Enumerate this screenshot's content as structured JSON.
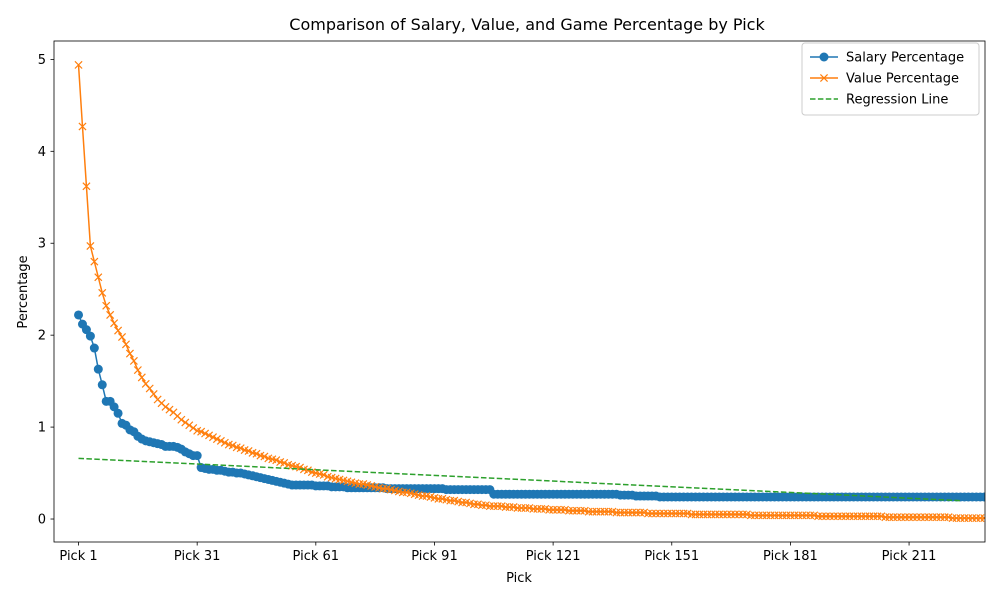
{
  "chart_data": {
    "type": "line",
    "title": "Comparison of Salary, Value, and Game Percentage by Pick",
    "xlabel": "Pick",
    "ylabel": "Percentage",
    "x_count": 224,
    "xticks": [
      {
        "index": 1,
        "label": "Pick 1"
      },
      {
        "index": 31,
        "label": "Pick 31"
      },
      {
        "index": 61,
        "label": "Pick 61"
      },
      {
        "index": 91,
        "label": "Pick 91"
      },
      {
        "index": 121,
        "label": "Pick 121"
      },
      {
        "index": 151,
        "label": "Pick 151"
      },
      {
        "index": 181,
        "label": "Pick 181"
      },
      {
        "index": 211,
        "label": "Pick 211"
      }
    ],
    "xlim": [
      -5.2,
      230.2
    ],
    "ylim": [
      -0.25,
      5.2
    ],
    "yticks": [
      0,
      1,
      2,
      3,
      4,
      5
    ],
    "grid": false,
    "legend_position": "top-right",
    "series": [
      {
        "name": "Salary Percentage",
        "color": "#1f77b4",
        "marker": "circle",
        "values": [
          2.22,
          2.12,
          2.06,
          1.99,
          1.86,
          1.63,
          1.46,
          1.28,
          1.28,
          1.22,
          1.15,
          1.04,
          1.02,
          0.97,
          0.95,
          0.9,
          0.87,
          0.85,
          0.84,
          0.83,
          0.82,
          0.81,
          0.79,
          0.79,
          0.79,
          0.78,
          0.76,
          0.73,
          0.71,
          0.69,
          0.69,
          0.56,
          0.55,
          0.54,
          0.54,
          0.53,
          0.53,
          0.52,
          0.51,
          0.51,
          0.5,
          0.5,
          0.49,
          0.48,
          0.47,
          0.46,
          0.45,
          0.44,
          0.43,
          0.42,
          0.41,
          0.4,
          0.39,
          0.38,
          0.37,
          0.37,
          0.37,
          0.37,
          0.37,
          0.37,
          0.36,
          0.36,
          0.36,
          0.36,
          0.35,
          0.35,
          0.35,
          0.35,
          0.34,
          0.34,
          0.34,
          0.34,
          0.34,
          0.34,
          0.34,
          0.34,
          0.34,
          0.34,
          0.33,
          0.33,
          0.33,
          0.33,
          0.33,
          0.33,
          0.33,
          0.33,
          0.33,
          0.33,
          0.33,
          0.33,
          0.33,
          0.33,
          0.33,
          0.32,
          0.32,
          0.32,
          0.32,
          0.32,
          0.32,
          0.32,
          0.32,
          0.32,
          0.32,
          0.32,
          0.32,
          0.27,
          0.27,
          0.27,
          0.27,
          0.27,
          0.27,
          0.27,
          0.27,
          0.27,
          0.27,
          0.27,
          0.27,
          0.27,
          0.27,
          0.27,
          0.27,
          0.27,
          0.27,
          0.27,
          0.27,
          0.27,
          0.27,
          0.27,
          0.27,
          0.27,
          0.27,
          0.27,
          0.27,
          0.27,
          0.27,
          0.27,
          0.27,
          0.26,
          0.26,
          0.26,
          0.26,
          0.25,
          0.25,
          0.25,
          0.25,
          0.25,
          0.25,
          0.24,
          0.24,
          0.24,
          0.24,
          0.24,
          0.24,
          0.24,
          0.24,
          0.24,
          0.24,
          0.24,
          0.24,
          0.24,
          0.24,
          0.24,
          0.24,
          0.24,
          0.24,
          0.24,
          0.24,
          0.24,
          0.24,
          0.24,
          0.24,
          0.24,
          0.24,
          0.24,
          0.24,
          0.24,
          0.24,
          0.24,
          0.24,
          0.24,
          0.24,
          0.24,
          0.24,
          0.24,
          0.24,
          0.24,
          0.24,
          0.24,
          0.24,
          0.24,
          0.24,
          0.24,
          0.24,
          0.24,
          0.24,
          0.24,
          0.24,
          0.24,
          0.24,
          0.24,
          0.24,
          0.24,
          0.24,
          0.24,
          0.24,
          0.24,
          0.24,
          0.24,
          0.24,
          0.24,
          0.24,
          0.24,
          0.24,
          0.24,
          0.24,
          0.24,
          0.24,
          0.24,
          0.24,
          0.24,
          0.24,
          0.24,
          0.24,
          0.24,
          0.24,
          0.24,
          0.24,
          0.24,
          0.24,
          0.24,
          0.24,
          0.24,
          0.24,
          0.24,
          0.24
        ]
      },
      {
        "name": "Value Percentage",
        "color": "#ff7f0e",
        "marker": "x",
        "values": [
          4.94,
          4.27,
          3.62,
          2.97,
          2.8,
          2.63,
          2.46,
          2.32,
          2.22,
          2.13,
          2.05,
          1.98,
          1.9,
          1.8,
          1.72,
          1.62,
          1.54,
          1.47,
          1.42,
          1.36,
          1.3,
          1.26,
          1.22,
          1.19,
          1.16,
          1.12,
          1.08,
          1.05,
          1.02,
          0.99,
          0.96,
          0.95,
          0.93,
          0.91,
          0.89,
          0.87,
          0.85,
          0.83,
          0.81,
          0.8,
          0.78,
          0.77,
          0.75,
          0.74,
          0.72,
          0.71,
          0.69,
          0.68,
          0.66,
          0.65,
          0.64,
          0.62,
          0.61,
          0.59,
          0.58,
          0.57,
          0.56,
          0.54,
          0.53,
          0.51,
          0.5,
          0.49,
          0.48,
          0.46,
          0.45,
          0.44,
          0.43,
          0.42,
          0.41,
          0.4,
          0.39,
          0.38,
          0.38,
          0.37,
          0.36,
          0.35,
          0.34,
          0.33,
          0.33,
          0.32,
          0.31,
          0.3,
          0.29,
          0.29,
          0.28,
          0.27,
          0.26,
          0.25,
          0.25,
          0.24,
          0.23,
          0.22,
          0.22,
          0.21,
          0.2,
          0.2,
          0.19,
          0.18,
          0.18,
          0.17,
          0.16,
          0.16,
          0.15,
          0.15,
          0.14,
          0.14,
          0.14,
          0.14,
          0.13,
          0.13,
          0.13,
          0.12,
          0.12,
          0.12,
          0.12,
          0.11,
          0.11,
          0.11,
          0.11,
          0.1,
          0.1,
          0.1,
          0.1,
          0.1,
          0.09,
          0.09,
          0.09,
          0.09,
          0.09,
          0.08,
          0.08,
          0.08,
          0.08,
          0.08,
          0.08,
          0.08,
          0.07,
          0.07,
          0.07,
          0.07,
          0.07,
          0.07,
          0.07,
          0.07,
          0.06,
          0.06,
          0.06,
          0.06,
          0.06,
          0.06,
          0.06,
          0.06,
          0.06,
          0.06,
          0.06,
          0.05,
          0.05,
          0.05,
          0.05,
          0.05,
          0.05,
          0.05,
          0.05,
          0.05,
          0.05,
          0.05,
          0.05,
          0.05,
          0.05,
          0.05,
          0.04,
          0.04,
          0.04,
          0.04,
          0.04,
          0.04,
          0.04,
          0.04,
          0.04,
          0.04,
          0.04,
          0.04,
          0.04,
          0.04,
          0.04,
          0.04,
          0.04,
          0.03,
          0.03,
          0.03,
          0.03,
          0.03,
          0.03,
          0.03,
          0.03,
          0.03,
          0.03,
          0.03,
          0.03,
          0.03,
          0.03,
          0.03,
          0.03,
          0.03,
          0.02,
          0.02,
          0.02,
          0.02,
          0.02,
          0.02,
          0.02,
          0.02,
          0.02,
          0.02,
          0.02,
          0.02,
          0.02,
          0.02,
          0.02,
          0.02,
          0.02,
          0.01,
          0.01,
          0.01,
          0.01,
          0.01,
          0.01,
          0.01,
          0.01,
          0.01,
          0.01,
          0.01,
          0.01,
          0.01,
          0.01,
          0.01,
          0.01,
          0.01,
          0.0,
          0.0,
          0.0,
          0.0
        ]
      },
      {
        "name": "Regression Line",
        "color": "#2ca02c",
        "style": "dashed",
        "start": [
          1,
          0.66
        ],
        "end": [
          224,
          0.2
        ]
      }
    ]
  }
}
